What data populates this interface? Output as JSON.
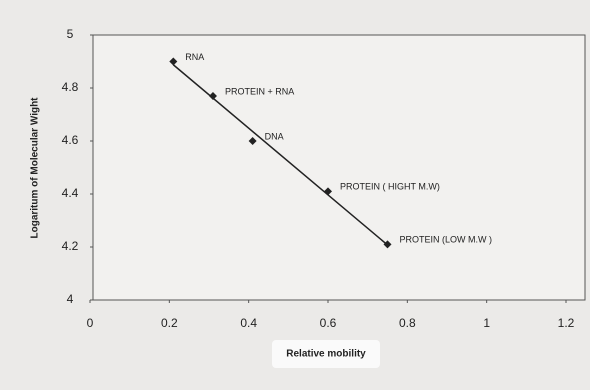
{
  "chart_data": {
    "type": "scatter",
    "x_label": "Relative mobility",
    "y_label": "Logaritum of Molecular Wight",
    "x": [
      0.21,
      0.31,
      0.41,
      0.6,
      0.75
    ],
    "values": [
      4.9,
      4.77,
      4.6,
      4.41,
      4.21
    ],
    "point_labels": [
      "RNA",
      "PROTEIN + RNA",
      "DNA",
      "PROTEIN ( HIGHT M.W)",
      "PROTEIN (LOW M.W )"
    ],
    "color": "#222222",
    "trendline": true,
    "xlim": [
      0,
      1.2
    ],
    "xticks": [
      0,
      0.2,
      0.4,
      0.6,
      0.8,
      1,
      1.2
    ],
    "ylim": [
      4,
      5
    ],
    "yticks": [
      4,
      4.2,
      4.4,
      4.6,
      4.8,
      5
    ],
    "grid": false
  }
}
